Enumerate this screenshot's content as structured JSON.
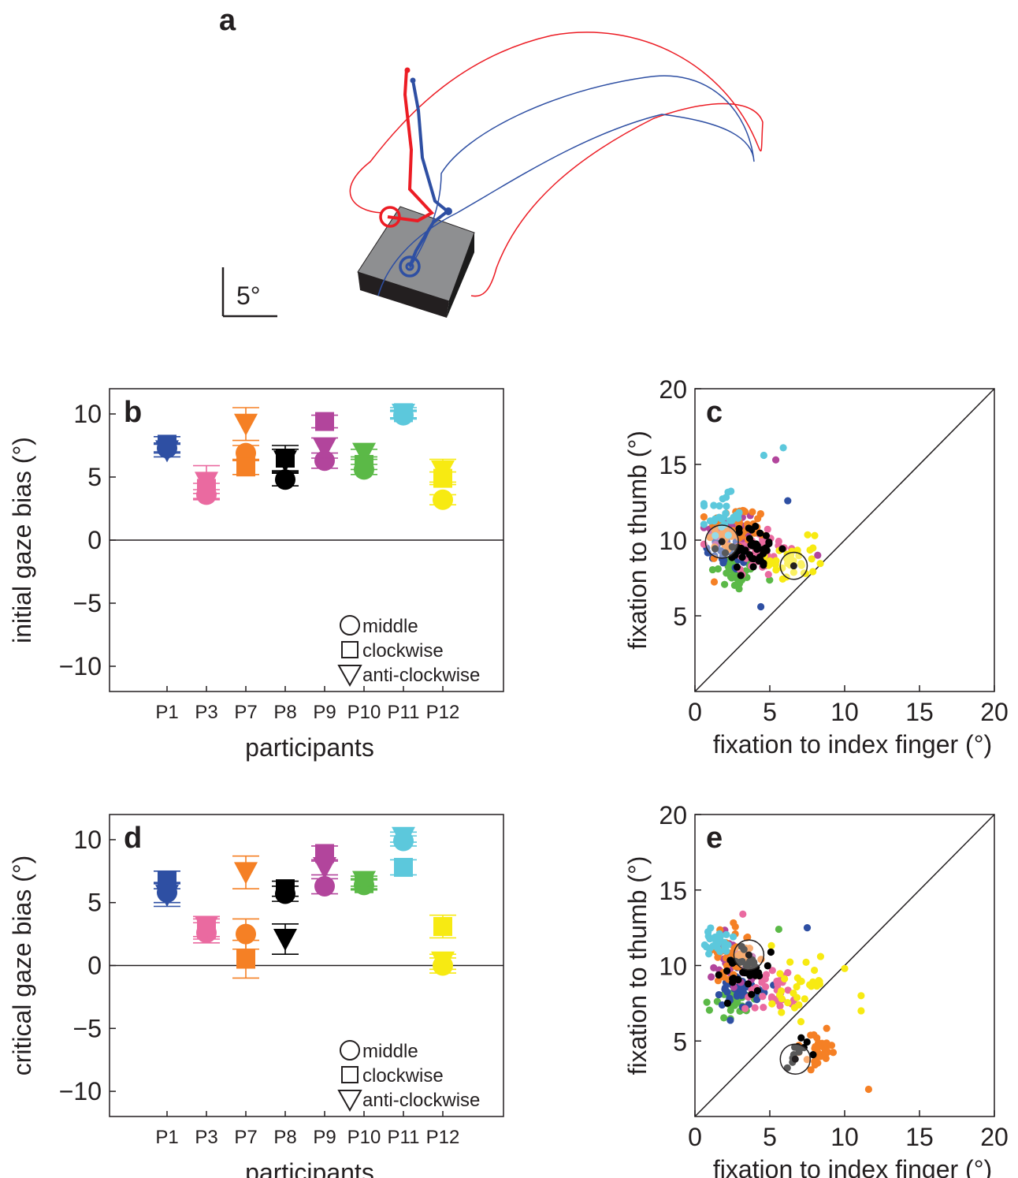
{
  "colors": {
    "P1": "#2e4fa3",
    "P3": "#ea6aa0",
    "P7": "#f58025",
    "P8": "#000000",
    "P9": "#b2459c",
    "P10": "#5bb947",
    "P11": "#5cc8dc",
    "P12": "#f7ea12",
    "trace_red": "#ec1c24",
    "trace_blue": "#2e4fa3",
    "axis": "#231f20"
  },
  "panel_a": {
    "letter": "a",
    "scale_label": "5°",
    "description_shape": "grey block with index (red) and thumb (blue) gaze/finger trajectories"
  },
  "chart_data": [
    {
      "id": "b",
      "letter": "b",
      "type": "scatter",
      "xlabel": "participants",
      "ylabel": "initial gaze bias (°)",
      "ylim": [
        -12,
        12
      ],
      "yticks": [
        10,
        5,
        0,
        -5,
        -10
      ],
      "ytick_labels": [
        "10",
        "5",
        "0",
        "−5",
        "−10"
      ],
      "categories": [
        "P1",
        "P3",
        "P7",
        "P8",
        "P9",
        "P10",
        "P11",
        "P12"
      ],
      "legend": [
        "middle",
        "clockwise",
        "anti-clockwise"
      ],
      "legend_position": "bottom-right",
      "series": [
        {
          "name": "middle",
          "marker": "circle",
          "values": [
            7.3,
            3.6,
            6.9,
            4.8,
            6.3,
            5.6,
            9.9,
            3.2
          ],
          "err": [
            0.4,
            0.4,
            0.6,
            0.5,
            0.6,
            0.4,
            0.3,
            0.4
          ]
        },
        {
          "name": "clockwise",
          "marker": "square",
          "values": [
            7.6,
            4.1,
            5.8,
            6.5,
            9.4,
            6.0,
            10.1,
            4.9
          ],
          "err": [
            0.6,
            0.4,
            0.6,
            1.0,
            0.5,
            0.4,
            0.4,
            0.5
          ]
        },
        {
          "name": "anti-clockwise",
          "marker": "triangle",
          "values": [
            7.1,
            4.6,
            9.2,
            6.3,
            7.3,
            6.9,
            10.0,
            5.5
          ],
          "err": [
            0.5,
            1.3,
            1.3,
            0.9,
            0.8,
            0.3,
            0.3,
            0.9
          ]
        }
      ]
    },
    {
      "id": "c",
      "letter": "c",
      "type": "scatter",
      "xlabel": "fixation to index finger (°)",
      "ylabel": "fixation to thumb (°)",
      "xlim": [
        0,
        20
      ],
      "ylim": [
        0,
        20
      ],
      "xticks": [
        0,
        5,
        10,
        15,
        20
      ],
      "yticks": [
        5,
        10,
        15,
        20
      ],
      "diagonal": true,
      "circles": [
        {
          "x": 1.8,
          "y": 9.9,
          "r": 1.1
        },
        {
          "x": 6.6,
          "y": 8.3,
          "r": 0.9
        }
      ],
      "clusters": [
        {
          "participant": "P1",
          "cx": 2.5,
          "cy": 9.5,
          "sx": 1.2,
          "sy": 1.1,
          "n": 40
        },
        {
          "participant": "P3",
          "cx": 4.2,
          "cy": 9.3,
          "sx": 1.3,
          "sy": 1.2,
          "n": 45
        },
        {
          "participant": "P7",
          "cx": 2.8,
          "cy": 10.7,
          "sx": 1.3,
          "sy": 1.1,
          "n": 60
        },
        {
          "participant": "P8",
          "cx": 3.8,
          "cy": 9.4,
          "sx": 1.3,
          "sy": 1.0,
          "n": 45
        },
        {
          "participant": "P9",
          "cx": 2.4,
          "cy": 10.6,
          "sx": 1.2,
          "sy": 1.0,
          "n": 40
        },
        {
          "participant": "P10",
          "cx": 2.7,
          "cy": 7.8,
          "sx": 1.1,
          "sy": 0.8,
          "n": 35
        },
        {
          "participant": "P11",
          "cx": 1.8,
          "cy": 11.6,
          "sx": 0.9,
          "sy": 0.9,
          "n": 30
        },
        {
          "participant": "P12",
          "cx": 6.4,
          "cy": 8.6,
          "sx": 1.1,
          "sy": 1.0,
          "n": 35
        }
      ],
      "points": [
        {
          "participant": "P11",
          "x": 4.6,
          "y": 15.6
        },
        {
          "participant": "P11",
          "x": 5.9,
          "y": 16.1
        },
        {
          "participant": "P9",
          "x": 5.4,
          "y": 15.3
        },
        {
          "participant": "P1",
          "x": 4.4,
          "y": 5.6
        },
        {
          "participant": "P9",
          "x": 8.2,
          "y": 9.0
        },
        {
          "participant": "P12",
          "x": 8.0,
          "y": 10.3
        },
        {
          "participant": "P1",
          "x": 6.2,
          "y": 12.6
        }
      ]
    },
    {
      "id": "d",
      "letter": "d",
      "type": "scatter",
      "xlabel": "participants",
      "ylabel": "critical gaze bias (°)",
      "ylim": [
        -12,
        12
      ],
      "yticks": [
        10,
        5,
        0,
        -5,
        -10
      ],
      "ytick_labels": [
        "10",
        "5",
        "0",
        "−5",
        "−10"
      ],
      "categories": [
        "P1",
        "P3",
        "P7",
        "P8",
        "P9",
        "P10",
        "P11",
        "P12"
      ],
      "legend": [
        "middle",
        "clockwise",
        "anti-clockwise"
      ],
      "legend_position": "bottom-right",
      "series": [
        {
          "name": "middle",
          "marker": "circle",
          "values": [
            5.8,
            2.6,
            2.5,
            5.7,
            6.3,
            6.4,
            9.9,
            0.0
          ],
          "err": [
            0.8,
            0.8,
            1.2,
            0.6,
            0.6,
            0.4,
            0.4,
            0.6
          ]
        },
        {
          "name": "clockwise",
          "marker": "square",
          "values": [
            6.8,
            2.9,
            0.5,
            6.1,
            8.9,
            6.5,
            7.8,
            3.1
          ],
          "err": [
            0.7,
            0.8,
            1.5,
            0.6,
            0.6,
            0.4,
            0.6,
            0.9
          ]
        },
        {
          "name": "anti-clockwise",
          "marker": "triangle",
          "values": [
            5.6,
            3.1,
            7.4,
            2.1,
            7.8,
            6.7,
            10.2,
            0.3
          ],
          "err": [
            0.9,
            0.8,
            1.3,
            1.2,
            0.6,
            0.4,
            0.4,
            0.6
          ]
        }
      ]
    },
    {
      "id": "e",
      "letter": "e",
      "type": "scatter",
      "xlabel": "fixation to index finger (°)",
      "ylabel": "fixation to thumb (°)",
      "xlim": [
        0,
        20
      ],
      "ylim": [
        0,
        20
      ],
      "xticks": [
        0,
        5,
        10,
        15,
        20
      ],
      "yticks": [
        5,
        10,
        15,
        20
      ],
      "diagonal": true,
      "circles": [
        {
          "x": 3.6,
          "y": 10.7,
          "r": 1.0
        },
        {
          "x": 6.7,
          "y": 3.8,
          "r": 1.0
        }
      ],
      "clusters": [
        {
          "participant": "P1",
          "cx": 3.0,
          "cy": 8.5,
          "sx": 1.1,
          "sy": 1.0,
          "n": 40
        },
        {
          "participant": "P3",
          "cx": 4.8,
          "cy": 8.6,
          "sx": 1.2,
          "sy": 1.2,
          "n": 35
        },
        {
          "participant": "P7",
          "cx": 2.3,
          "cy": 10.8,
          "sx": 1.2,
          "sy": 1.1,
          "n": 40
        },
        {
          "participant": "P7",
          "cx": 8.4,
          "cy": 4.4,
          "sx": 0.9,
          "sy": 0.8,
          "n": 30
        },
        {
          "participant": "P8",
          "cx": 3.3,
          "cy": 9.8,
          "sx": 1.2,
          "sy": 1.1,
          "n": 35
        },
        {
          "participant": "P8",
          "cx": 6.8,
          "cy": 4.2,
          "sx": 0.6,
          "sy": 0.7,
          "n": 12
        },
        {
          "participant": "P9",
          "cx": 2.8,
          "cy": 9.9,
          "sx": 1.1,
          "sy": 1.0,
          "n": 35
        },
        {
          "participant": "P10",
          "cx": 2.5,
          "cy": 7.7,
          "sx": 1.0,
          "sy": 0.7,
          "n": 30
        },
        {
          "participant": "P11",
          "cx": 1.6,
          "cy": 11.5,
          "sx": 0.7,
          "sy": 0.7,
          "n": 30
        },
        {
          "participant": "P12",
          "cx": 6.9,
          "cy": 8.0,
          "sx": 1.5,
          "sy": 1.8,
          "n": 30
        }
      ],
      "points": [
        {
          "participant": "P1",
          "x": 7.5,
          "y": 12.5
        },
        {
          "participant": "P3",
          "x": 3.2,
          "y": 13.4
        },
        {
          "participant": "P12",
          "x": 10.0,
          "y": 9.8
        },
        {
          "participant": "P12",
          "x": 11.1,
          "y": 8.0
        },
        {
          "participant": "P12",
          "x": 11.1,
          "y": 7.0
        },
        {
          "participant": "P7",
          "x": 11.6,
          "y": 1.8
        },
        {
          "participant": "P10",
          "x": 5.6,
          "y": 12.4
        }
      ]
    }
  ]
}
